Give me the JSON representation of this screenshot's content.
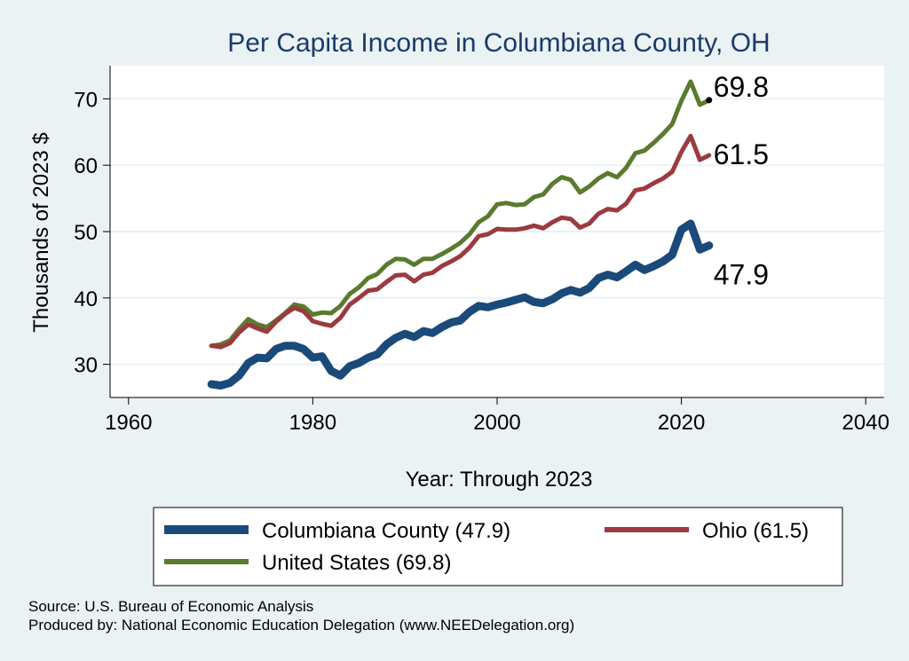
{
  "chart_data": {
    "type": "line",
    "title": "Per Capita Income in Columbiana County, OH",
    "xlabel": "Year: Through 2023",
    "ylabel": "Thousands of 2023 $",
    "xlim": [
      1958,
      2042
    ],
    "ylim": [
      25,
      75
    ],
    "x_ticks": [
      1960,
      1980,
      2000,
      2020,
      2040
    ],
    "y_ticks": [
      30,
      40,
      50,
      60,
      70
    ],
    "grid": "horizontal",
    "legend_position": "bottom",
    "x": [
      1969,
      1970,
      1971,
      1972,
      1973,
      1974,
      1975,
      1976,
      1977,
      1978,
      1979,
      1980,
      1981,
      1982,
      1983,
      1984,
      1985,
      1986,
      1987,
      1988,
      1989,
      1990,
      1991,
      1992,
      1993,
      1994,
      1995,
      1996,
      1997,
      1998,
      1999,
      2000,
      2001,
      2002,
      2003,
      2004,
      2005,
      2006,
      2007,
      2008,
      2009,
      2010,
      2011,
      2012,
      2013,
      2014,
      2015,
      2016,
      2017,
      2018,
      2019,
      2020,
      2021,
      2022,
      2023
    ],
    "series": [
      {
        "name": "Columbiana County (47.9)",
        "color": "#1a4a7a",
        "end_label": "47.9",
        "values": [
          27.0,
          26.8,
          27.2,
          28.3,
          30.2,
          31.0,
          30.9,
          32.3,
          32.8,
          32.8,
          32.3,
          31.0,
          31.2,
          29.0,
          28.3,
          29.7,
          30.2,
          31.0,
          31.5,
          33.0,
          34.0,
          34.6,
          34.1,
          35.0,
          34.7,
          35.6,
          36.3,
          36.6,
          37.9,
          38.8,
          38.6,
          39.0,
          39.3,
          39.7,
          40.1,
          39.4,
          39.2,
          39.8,
          40.7,
          41.2,
          40.8,
          41.5,
          43.0,
          43.5,
          43.1,
          44.0,
          45.0,
          44.2,
          44.8,
          45.5,
          46.5,
          50.3,
          51.2,
          47.3,
          47.9
        ]
      },
      {
        "name": "Ohio (61.5)",
        "color": "#9b3a3f",
        "end_label": "61.5",
        "values": [
          32.8,
          32.6,
          33.2,
          34.8,
          36.0,
          35.4,
          34.9,
          36.4,
          37.6,
          38.5,
          38.0,
          36.5,
          36.1,
          35.8,
          37.0,
          39.0,
          40.0,
          41.1,
          41.3,
          42.4,
          43.4,
          43.5,
          42.5,
          43.5,
          43.8,
          44.8,
          45.5,
          46.3,
          47.6,
          49.3,
          49.6,
          50.4,
          50.3,
          50.3,
          50.5,
          50.9,
          50.5,
          51.4,
          52.1,
          51.9,
          50.6,
          51.2,
          52.7,
          53.4,
          53.2,
          54.2,
          56.2,
          56.5,
          57.3,
          58.0,
          59.0,
          62.0,
          64.4,
          60.8,
          61.5
        ]
      },
      {
        "name": "United States (69.8)",
        "color": "#5a7a2e",
        "end_label": "69.8",
        "values": [
          32.8,
          33.0,
          33.6,
          35.3,
          36.8,
          36.0,
          35.6,
          36.6,
          37.7,
          39.0,
          38.7,
          37.5,
          37.8,
          37.7,
          38.8,
          40.6,
          41.6,
          43.0,
          43.6,
          45.0,
          45.9,
          45.8,
          45.0,
          45.9,
          45.9,
          46.6,
          47.4,
          48.3,
          49.6,
          51.4,
          52.3,
          54.1,
          54.3,
          54.0,
          54.1,
          55.2,
          55.6,
          57.2,
          58.2,
          57.8,
          55.9,
          56.8,
          58.0,
          58.8,
          58.2,
          59.6,
          61.8,
          62.2,
          63.4,
          64.7,
          66.2,
          69.7,
          72.6,
          69.1,
          69.8
        ]
      }
    ],
    "legend_order": [
      0,
      1,
      2
    ]
  },
  "footer": {
    "source": "Source: U.S. Bureau of Economic Analysis",
    "produced_by": "Produced by: National Economic Education Delegation (www.NEEDelegation.org)"
  }
}
